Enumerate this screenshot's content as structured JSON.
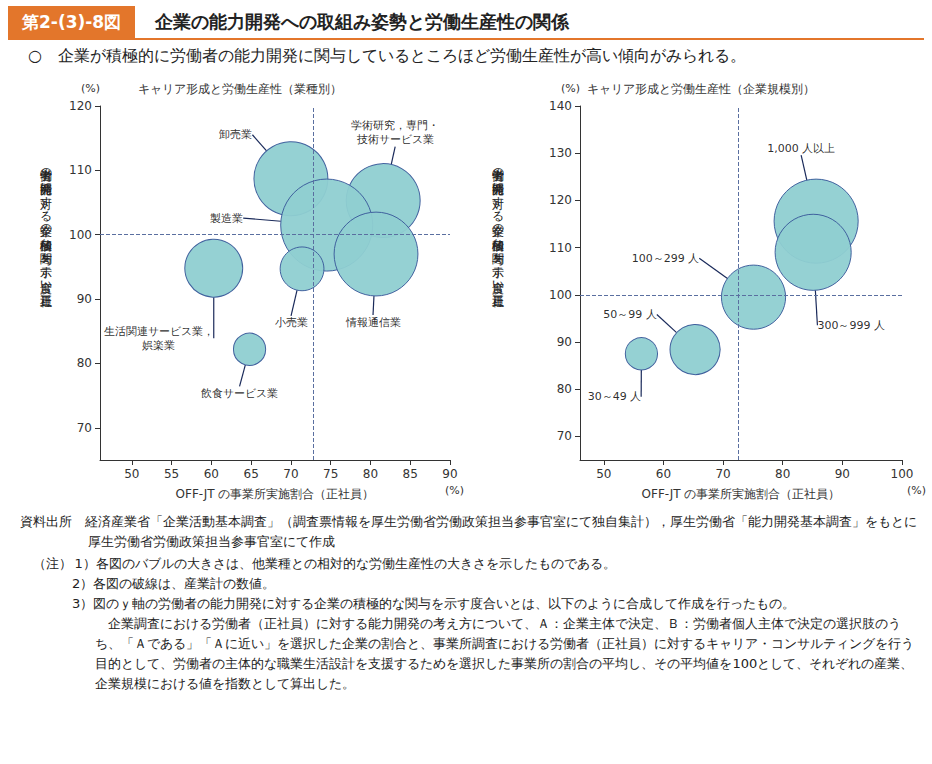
{
  "header": {
    "figure_number": "第2-(3)-8図",
    "title": "企業の能力開発への取組み姿勢と労働生産性の関係",
    "summary": "○　企業が積極的に労働者の能力開発に関与しているところほど労働生産性が高い傾向がみられる。"
  },
  "chart_data": [
    {
      "type": "scatter",
      "title": "キャリア形成と労働生産性（業種別）",
      "x_label": "OFF-JT の事業所実施割合（正社員）",
      "y_label": "労働者の能力開発に対する企業の積極的な関与を示す度合い（正社員）",
      "x_unit": "(%)",
      "y_unit": "(%)",
      "labels": [
        "卸売業",
        "学術研究，専門・\n技術サービス業",
        "製造業",
        "小売業",
        "情報通信業",
        "生活関連サービス業，\n娯楽業",
        "飲食サービス業"
      ],
      "x": [
        70.0,
        81.6,
        74.5,
        71.4,
        80.7,
        60.3,
        64.8
      ],
      "values": [
        108.7,
        105.3,
        101.5,
        94.7,
        97.0,
        94.8,
        82.2
      ],
      "sizes": [
        137,
        137,
        212,
        48,
        176,
        84,
        26
      ],
      "color": "#8fcfd1",
      "reference_lines": {
        "x": 72.8,
        "y": 100
      },
      "xlim": [
        46,
        90
      ],
      "xticks": [
        50,
        55,
        60,
        65,
        70,
        75,
        80,
        85,
        90
      ],
      "ylim": [
        65,
        120
      ],
      "yticks": [
        70,
        80,
        90,
        100,
        110,
        120
      ],
      "grid": false
    },
    {
      "type": "scatter",
      "title": "キャリア形成と労働生産性（企業規模別）",
      "x_label": "OFF-JT の事業所実施割合（正社員）",
      "y_label": "労働者の能力開発に対する企業の積極的な関与を示す度合い（正社員）",
      "x_unit": "(%)",
      "y_unit": "(%)",
      "labels": [
        "1,000 人以上",
        "300～999 人",
        "100～299 人",
        "50～99 人",
        "30～49 人"
      ],
      "x": [
        85.6,
        85.1,
        75.1,
        65.3,
        56.3
      ],
      "values": [
        115.6,
        109.0,
        99.5,
        88.4,
        87.5
      ],
      "sizes": [
        177,
        145,
        103,
        63,
        26
      ],
      "color": "#8fcfd1",
      "reference_lines": {
        "x": 72.5,
        "y": 100
      },
      "xlim": [
        46,
        100
      ],
      "xticks": [
        50,
        60,
        70,
        80,
        90,
        100
      ],
      "ylim": [
        65,
        140
      ],
      "yticks": [
        70,
        80,
        90,
        100,
        110,
        120,
        130,
        140
      ],
      "grid": false
    }
  ],
  "source": "資料出所　経済産業省「企業活動基本調査」（調査票情報を厚生労働省労働政策担当参事官室にて独自集計），厚生労働省「能力開発基本調査」をもとに厚生労働省労働政策担当参事官室にて作成",
  "notes": {
    "heading": "（注）",
    "items": [
      "1）各図のバブルの大きさは、他業種との相対的な労働生産性の大きさを示したものである。",
      "2）各図の破線は、産業計の数値。",
      "3）図のｙ軸の労働者の能力開発に対する企業の積極的な関与を示す度合いとは、以下のように合成して作成を行ったもの。"
    ],
    "paragraph": "企業調査における労働者（正社員）に対する能力開発の考え方について、Ａ：企業主体で決定、Ｂ：労働者個人主体で決定の選択肢のうち、「Ａである」「Ａに近い」を選択した企業の割合と、事業所調査における労働者（正社員）に対するキャリア・コンサルティングを行う目的として、労働者の主体的な職業生活設計を支援するためを選択した事業所の割合の平均し、その平均値を100として、それぞれの産業、企業規模における値を指数として算出した。"
  }
}
